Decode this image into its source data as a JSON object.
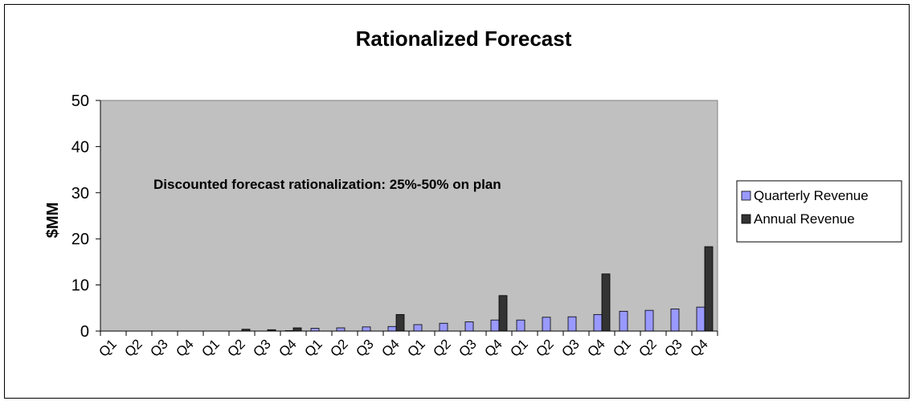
{
  "chart_data": {
    "type": "bar",
    "title": "Rationalized Forecast",
    "xlabel": "",
    "ylabel": "$MM",
    "ylim": [
      0,
      50
    ],
    "yticks": [
      0,
      10,
      20,
      30,
      40,
      50
    ],
    "grid": false,
    "legend_position": "right",
    "plot_background": "#c0c0c0",
    "annotation": "Discounted forecast rationalization: 25%-50% on plan",
    "categories": [
      "Q1",
      "Q2",
      "Q3",
      "Q4",
      "Q1",
      "Q2",
      "Q3",
      "Q4",
      "Q1",
      "Q2",
      "Q3",
      "Q4",
      "Q1",
      "Q2",
      "Q3",
      "Q4",
      "Q1",
      "Q2",
      "Q3",
      "Q4",
      "Q1",
      "Q2",
      "Q3",
      "Q4"
    ],
    "series": [
      {
        "name": "Quarterly Revenue",
        "color": "#9999ff",
        "values": [
          0,
          0,
          0,
          0,
          0,
          0,
          0,
          0.1,
          0.6,
          0.7,
          0.9,
          1.0,
          1.4,
          1.7,
          2.0,
          2.4,
          2.4,
          3.0,
          3.1,
          3.6,
          4.3,
          4.5,
          4.8,
          5.2
        ]
      },
      {
        "name": "Annual Revenue",
        "color": "#333333",
        "values": [
          0,
          0,
          0,
          0,
          0,
          0.4,
          0.3,
          0.7,
          0,
          0,
          0,
          3.6,
          0,
          0,
          0,
          7.7,
          0,
          0,
          0,
          12.4,
          0,
          0,
          0,
          18.3
        ]
      }
    ]
  }
}
